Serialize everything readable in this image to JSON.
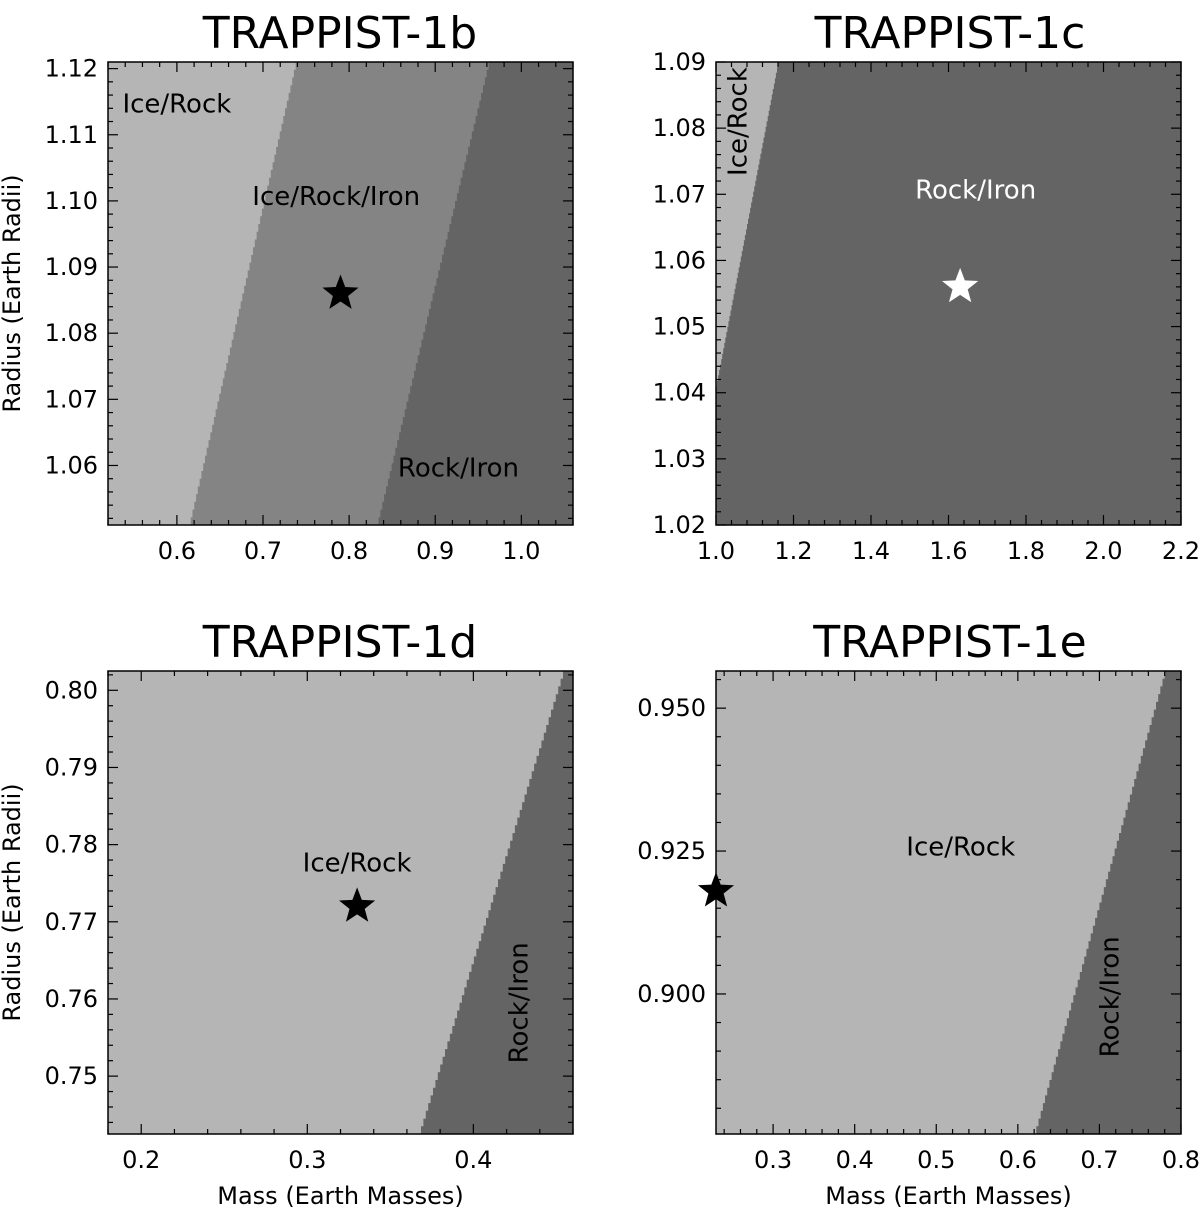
{
  "colors": {
    "ice_rock": "#b5b5b5",
    "ice_rock_iron": "#848484",
    "rock_iron": "#646464",
    "frame": "#000000"
  },
  "chart_data": [
    {
      "type": "heatmap",
      "title": "TRAPPIST-1b",
      "xlabel": "",
      "ylabel": "Radius (Earth Radii)",
      "xlim": [
        0.52,
        1.06
      ],
      "ylim": [
        1.051,
        1.121
      ],
      "xticks": [
        "0.6",
        "0.7",
        "0.8",
        "0.9",
        "1.0"
      ],
      "yticks": [
        "1.06",
        "1.07",
        "1.08",
        "1.09",
        "1.10",
        "1.11",
        "1.12"
      ],
      "regions": [
        {
          "name": "Ice/Rock",
          "color": "#b5b5b5",
          "boundary_bottom_x": 0.0,
          "boundary_top_x": 0.0
        },
        {
          "name": "Ice/Rock/Iron",
          "color": "#848484",
          "boundary_bottom_x": 0.614,
          "boundary_top_x": 0.738
        },
        {
          "name": "Rock/Iron",
          "color": "#646464",
          "boundary_bottom_x": 0.832,
          "boundary_top_x": 0.962
        }
      ],
      "labels": [
        {
          "text": "Ice/Rock",
          "x": 0.6,
          "y": 1.1145,
          "color": "#000000",
          "rotate": 0
        },
        {
          "text": "Ice/Rock/Iron",
          "x": 0.785,
          "y": 1.1005,
          "color": "#000000",
          "rotate": 0
        },
        {
          "text": "Rock/Iron",
          "x": 0.927,
          "y": 1.0595,
          "color": "#000000",
          "rotate": 0
        }
      ],
      "star": {
        "x": 0.79,
        "y": 1.086,
        "color": "#000000"
      }
    },
    {
      "type": "heatmap",
      "title": "TRAPPIST-1c",
      "xlabel": "",
      "ylabel": "",
      "xlim": [
        1.0,
        2.2
      ],
      "ylim": [
        1.02,
        1.09
      ],
      "xticks": [
        "1.0",
        "1.2",
        "1.4",
        "1.6",
        "1.8",
        "2.0",
        "2.2"
      ],
      "yticks": [
        "1.02",
        "1.03",
        "1.04",
        "1.05",
        "1.06",
        "1.07",
        "1.08",
        "1.09"
      ],
      "regions": [
        {
          "name": "Ice/Rock",
          "color": "#b5b5b5",
          "boundary_bottom_x": 0.0,
          "boundary_top_x": 0.0
        },
        {
          "name": "Rock/Iron",
          "color": "#646464",
          "boundary_bottom_x": 1.0,
          "boundary_top_x": 1.16
        }
      ],
      "left_region_start_y": 1.041,
      "labels": [
        {
          "text": "Ice/Rock",
          "x": 1.06,
          "y": 1.081,
          "color": "#000000",
          "rotate": -90
        },
        {
          "text": "Rock/Iron",
          "x": 1.67,
          "y": 1.0705,
          "color": "#ffffff",
          "rotate": 0
        }
      ],
      "star": {
        "x": 1.63,
        "y": 1.056,
        "color": "#ffffff"
      }
    },
    {
      "type": "heatmap",
      "title": "TRAPPIST-1d",
      "xlabel": "Mass (Earth Masses)",
      "ylabel": "Radius (Earth Radii)",
      "xlim": [
        0.18,
        0.46
      ],
      "ylim": [
        0.7425,
        0.8025
      ],
      "xticks": [
        "0.2",
        "0.3",
        "0.4"
      ],
      "yticks": [
        "0.75",
        "0.76",
        "0.77",
        "0.78",
        "0.79",
        "0.80"
      ],
      "regions": [
        {
          "name": "Ice/Rock",
          "color": "#b5b5b5",
          "boundary_bottom_x": 0.0,
          "boundary_top_x": 0.0
        },
        {
          "name": "Rock/Iron",
          "color": "#646464",
          "boundary_bottom_x": 0.367,
          "boundary_top_x": 0.454
        }
      ],
      "labels": [
        {
          "text": "Ice/Rock",
          "x": 0.33,
          "y": 0.7775,
          "color": "#000000",
          "rotate": 0
        },
        {
          "text": "Rock/Iron",
          "x": 0.428,
          "y": 0.7595,
          "color": "#000000",
          "rotate": -90
        }
      ],
      "star": {
        "x": 0.33,
        "y": 0.772,
        "color": "#000000"
      }
    },
    {
      "type": "heatmap",
      "title": "TRAPPIST-1e",
      "xlabel": "Mass (Earth Masses)",
      "ylabel": "",
      "xlim": [
        0.23,
        0.8
      ],
      "ylim": [
        0.8755,
        0.9565
      ],
      "xticks": [
        "0.3",
        "0.4",
        "0.5",
        "0.6",
        "0.7",
        "0.8"
      ],
      "yticks": [
        "0.900",
        "0.925",
        "0.950"
      ],
      "regions": [
        {
          "name": "Ice/Rock",
          "color": "#b5b5b5",
          "boundary_bottom_x": 0.0,
          "boundary_top_x": 0.0
        },
        {
          "name": "Rock/Iron",
          "color": "#646464",
          "boundary_bottom_x": 0.62,
          "boundary_top_x": 0.78
        }
      ],
      "labels": [
        {
          "text": "Ice/Rock",
          "x": 0.53,
          "y": 0.9255,
          "color": "#000000",
          "rotate": 0
        },
        {
          "text": "Rock/Iron",
          "x": 0.714,
          "y": 0.8995,
          "color": "#000000",
          "rotate": -90
        }
      ],
      "star": {
        "x": 0.23,
        "y": 0.918,
        "color": "#000000"
      }
    }
  ]
}
